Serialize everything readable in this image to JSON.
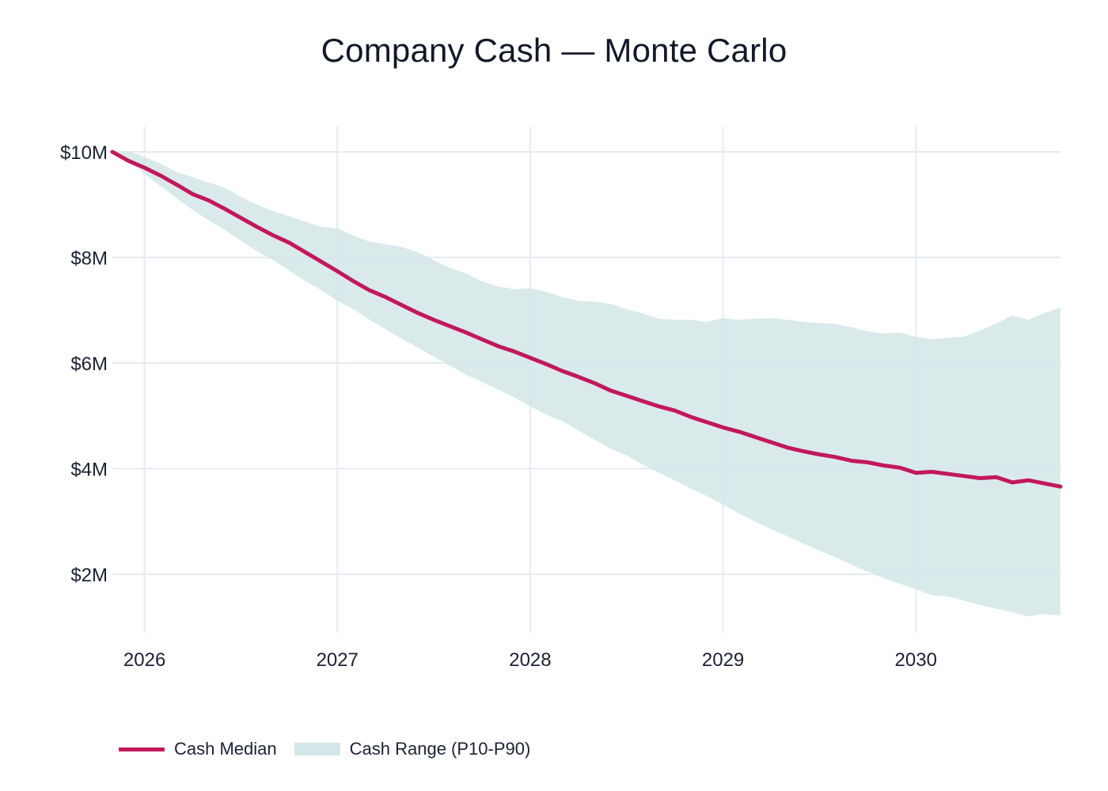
{
  "chart_data": {
    "type": "area",
    "title": "Company Cash — Monte Carlo",
    "xlabel": "",
    "ylabel": "",
    "x_range": [
      "2025-11-01",
      "2030-10-01"
    ],
    "ylim": [
      800000,
      10500000
    ],
    "grid": true,
    "legend_placement": "bottom-left",
    "x_ticks": [
      "2026",
      "2027",
      "2028",
      "2029",
      "2030"
    ],
    "y_ticks": [
      {
        "value": 2000000,
        "label": "$2M"
      },
      {
        "value": 4000000,
        "label": "$4M"
      },
      {
        "value": 6000000,
        "label": "$6M"
      },
      {
        "value": 8000000,
        "label": "$8M"
      },
      {
        "value": 10000000,
        "label": "$10M"
      }
    ],
    "x": [
      "2025-11",
      "2025-12",
      "2026-01",
      "2026-02",
      "2026-03",
      "2026-04",
      "2026-05",
      "2026-06",
      "2026-07",
      "2026-08",
      "2026-09",
      "2026-10",
      "2026-11",
      "2026-12",
      "2027-01",
      "2027-02",
      "2027-03",
      "2027-04",
      "2027-05",
      "2027-06",
      "2027-07",
      "2027-08",
      "2027-09",
      "2027-10",
      "2027-11",
      "2027-12",
      "2028-01",
      "2028-02",
      "2028-03",
      "2028-04",
      "2028-05",
      "2028-06",
      "2028-07",
      "2028-08",
      "2028-09",
      "2028-10",
      "2028-11",
      "2028-12",
      "2029-01",
      "2029-02",
      "2029-03",
      "2029-04",
      "2029-05",
      "2029-06",
      "2029-07",
      "2029-08",
      "2029-09",
      "2029-10",
      "2029-11",
      "2029-12",
      "2030-01",
      "2030-02",
      "2030-03",
      "2030-04",
      "2030-05",
      "2030-06",
      "2030-07",
      "2030-08",
      "2030-09",
      "2030-10"
    ],
    "series": [
      {
        "name": "Cash Median",
        "kind": "line",
        "color": "#c2185b",
        "values": [
          10.0,
          9.83,
          9.7,
          9.55,
          9.38,
          9.2,
          9.08,
          8.92,
          8.75,
          8.58,
          8.42,
          8.28,
          8.1,
          7.92,
          7.74,
          7.55,
          7.38,
          7.25,
          7.1,
          6.95,
          6.82,
          6.7,
          6.58,
          6.45,
          6.32,
          6.22,
          6.1,
          5.98,
          5.85,
          5.74,
          5.62,
          5.48,
          5.38,
          5.28,
          5.18,
          5.1,
          4.98,
          4.88,
          4.78,
          4.7,
          4.6,
          4.5,
          4.4,
          4.33,
          4.27,
          4.22,
          4.15,
          4.12,
          4.06,
          4.02,
          3.92,
          3.94,
          3.9,
          3.86,
          3.82,
          3.84,
          3.74,
          3.78,
          3.72,
          3.66
        ]
      },
      {
        "name": "Cash Range (P10-P90)",
        "kind": "band",
        "color": "#d4e6e8",
        "p90": [
          10.0,
          10.02,
          9.9,
          9.78,
          9.62,
          9.52,
          9.42,
          9.32,
          9.15,
          9.0,
          8.88,
          8.78,
          8.68,
          8.58,
          8.55,
          8.42,
          8.3,
          8.25,
          8.2,
          8.1,
          7.95,
          7.8,
          7.7,
          7.55,
          7.45,
          7.4,
          7.42,
          7.35,
          7.25,
          7.18,
          7.16,
          7.12,
          7.02,
          6.94,
          6.84,
          6.82,
          6.82,
          6.78,
          6.85,
          6.82,
          6.84,
          6.85,
          6.82,
          6.78,
          6.76,
          6.74,
          6.68,
          6.6,
          6.56,
          6.58,
          6.5,
          6.45,
          6.48,
          6.5,
          6.62,
          6.75,
          6.9,
          6.82,
          6.95,
          7.05
        ],
        "p10": [
          10.0,
          9.82,
          9.58,
          9.35,
          9.12,
          8.9,
          8.7,
          8.52,
          8.32,
          8.12,
          7.95,
          7.75,
          7.55,
          7.38,
          7.18,
          7.02,
          6.82,
          6.64,
          6.46,
          6.3,
          6.12,
          5.95,
          5.78,
          5.64,
          5.5,
          5.35,
          5.18,
          5.02,
          4.9,
          4.72,
          4.55,
          4.38,
          4.25,
          4.08,
          3.92,
          3.78,
          3.62,
          3.48,
          3.32,
          3.15,
          3.0,
          2.85,
          2.72,
          2.58,
          2.45,
          2.32,
          2.18,
          2.05,
          1.92,
          1.82,
          1.72,
          1.6,
          1.58,
          1.5,
          1.42,
          1.35,
          1.28,
          1.2,
          1.25,
          1.22
        ]
      }
    ],
    "units_note": "$M"
  },
  "legend": {
    "median_label": "Cash Median",
    "range_label": "Cash Range (P10-P90)"
  },
  "colors": {
    "median": "#c2185b",
    "band": "#d4e6e8",
    "grid": "#e6ebf2",
    "text": "#1a2233"
  }
}
